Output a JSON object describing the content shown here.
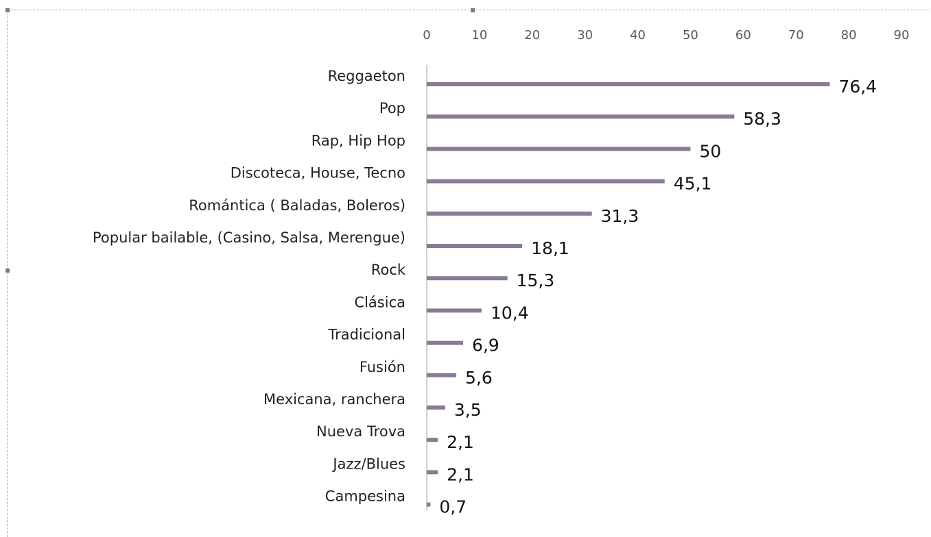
{
  "chart_data": {
    "type": "bar",
    "orientation": "horizontal",
    "title": "",
    "xlabel": "",
    "ylabel": "",
    "xlim": [
      0,
      90
    ],
    "x_ticks": [
      "0",
      "10",
      "20",
      "30",
      "40",
      "50",
      "60",
      "70",
      "80",
      "90"
    ],
    "x_axis_position": "top",
    "grid": false,
    "legend": "none",
    "bar_color": "#8a7a98",
    "categories": [
      "Reggaeton",
      "Pop",
      "Rap, Hip Hop",
      "Discoteca, House, Tecno",
      "Romántica ( Baladas, Boleros)",
      "Popular bailable, (Casino, Salsa, Merengue)",
      "Rock",
      "Clásica",
      "Tradicional",
      "Fusión",
      "Mexicana, ranchera",
      "Nueva Trova",
      "Jazz/Blues",
      "Campesina"
    ],
    "values": [
      76.4,
      58.3,
      50,
      45.1,
      31.3,
      18.1,
      15.3,
      10.4,
      6.9,
      5.6,
      3.5,
      2.1,
      2.1,
      0.7
    ],
    "data_labels": [
      "76,4",
      "58,3",
      "50",
      "45,1",
      "31,3",
      "18,1",
      "15,3",
      "10,4",
      "6,9",
      "5,6",
      "3,5",
      "2,1",
      "2,1",
      "0,7"
    ]
  }
}
